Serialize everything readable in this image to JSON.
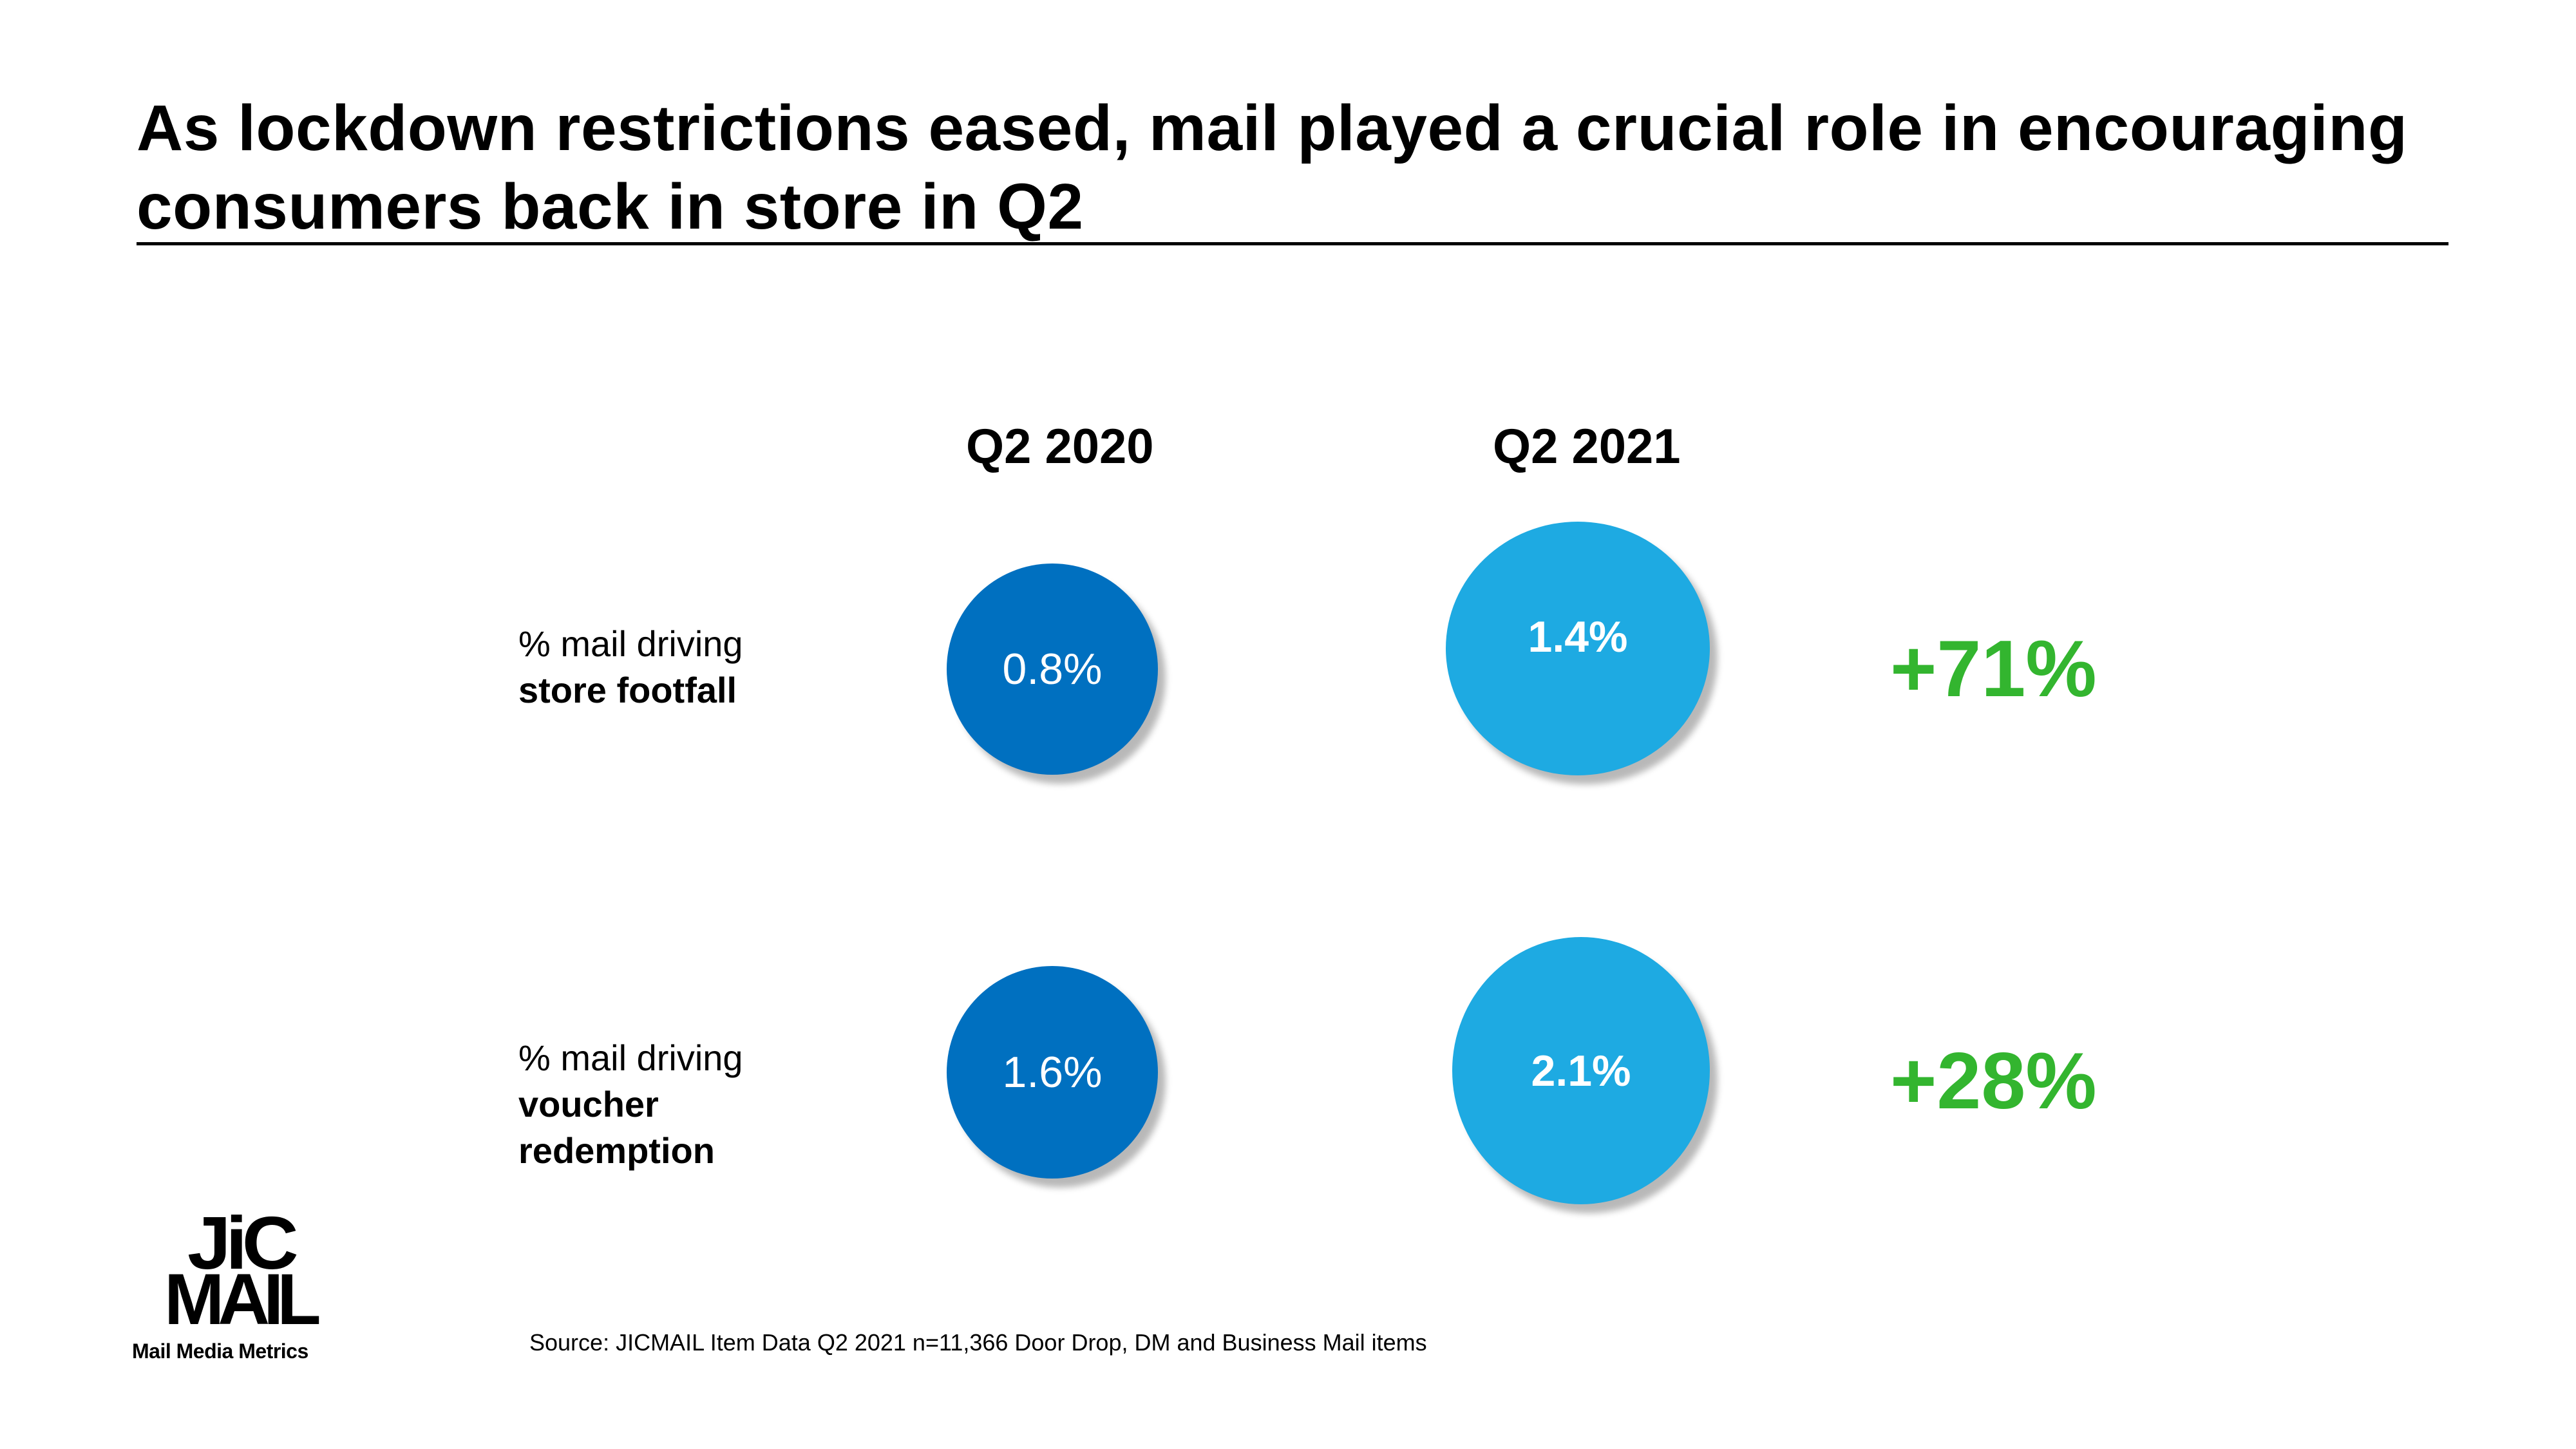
{
  "title": {
    "line1": "As lockdown restrictions eased, mail played a crucial role in encouraging",
    "line2": "consumers back in store in Q2"
  },
  "columns": [
    "Q2 2020",
    "Q2 2021"
  ],
  "rows": [
    {
      "label_line1": "% mail driving",
      "label_bold_line1": "store footfall",
      "label_bold_line2": "",
      "q2_2020": "0.8%",
      "q2_2021": "1.4%",
      "change": "+71%"
    },
    {
      "label_line1": "% mail driving",
      "label_bold_line1": "voucher",
      "label_bold_line2": "redemption",
      "q2_2020": "1.6%",
      "q2_2021": "2.1%",
      "change": "+28%"
    }
  ],
  "colors": {
    "q2_2020_bubble": "#0070c0",
    "q2_2021_bubble": "#1eaae2",
    "change_text": "#33b52f"
  },
  "logo": {
    "line1": "JiC",
    "line2": "MAIL",
    "tagline": "Mail Media Metrics"
  },
  "source": "Source: JICMAIL Item Data Q2 2021 n=11,366 Door Drop, DM and Business Mail items"
}
